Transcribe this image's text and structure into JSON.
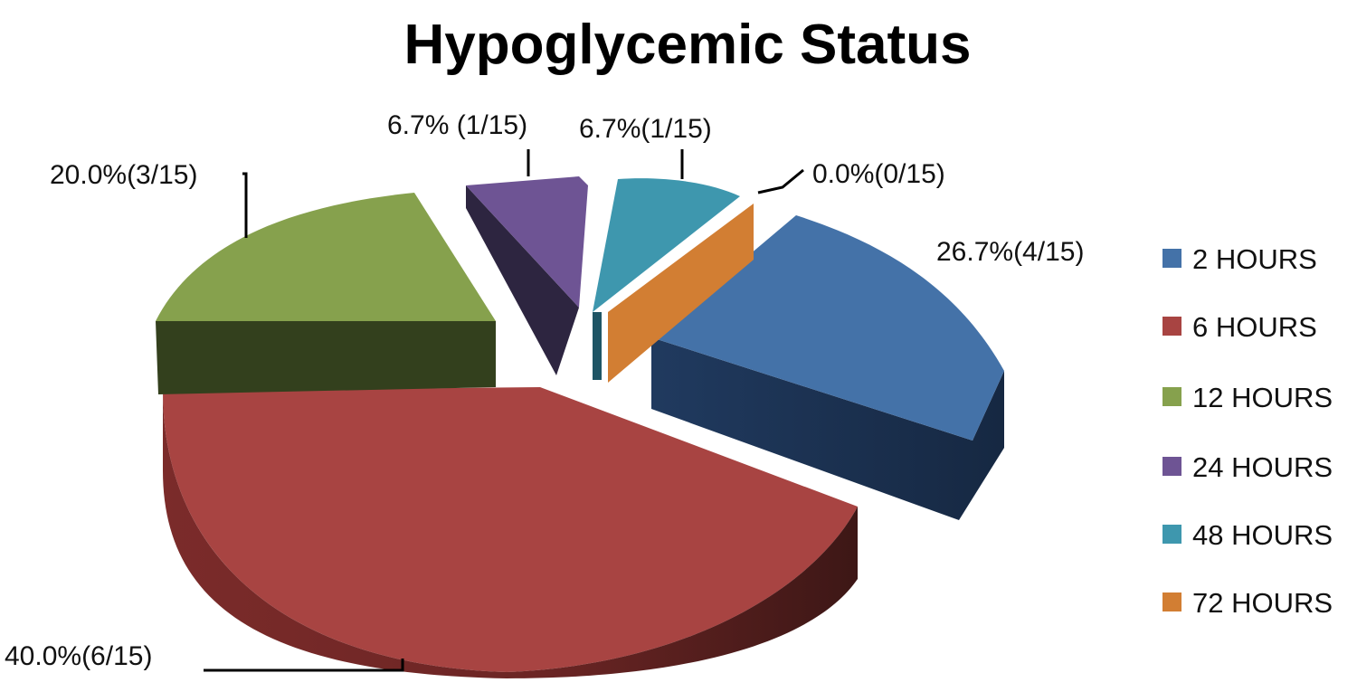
{
  "chart_data": {
    "type": "pie",
    "title": "Hypoglycemic Status",
    "legend_position": "right",
    "denominator": 15,
    "series": [
      {
        "name": "Hypoglycemic Status",
        "values": [
          4,
          6,
          3,
          1,
          1,
          0
        ]
      }
    ],
    "categories": [
      "2 HOURS",
      "6 HOURS",
      "12 HOURS",
      "24 HOURS",
      "48 HOURS",
      "72 HOURS"
    ],
    "percentages": [
      26.7,
      40.0,
      20.0,
      6.7,
      6.7,
      0.0
    ],
    "data_labels": [
      "26.7%(4/15)",
      "40.0%(6/15)",
      "20.0%(3/15)",
      "6.7% (1/15)",
      "6.7%(1/15)",
      "0.0%(0/15)"
    ],
    "colors": [
      "#4472A8",
      "#A84442",
      "#86A14D",
      "#6E5494",
      "#3E97AE",
      "#D27E33"
    ]
  }
}
